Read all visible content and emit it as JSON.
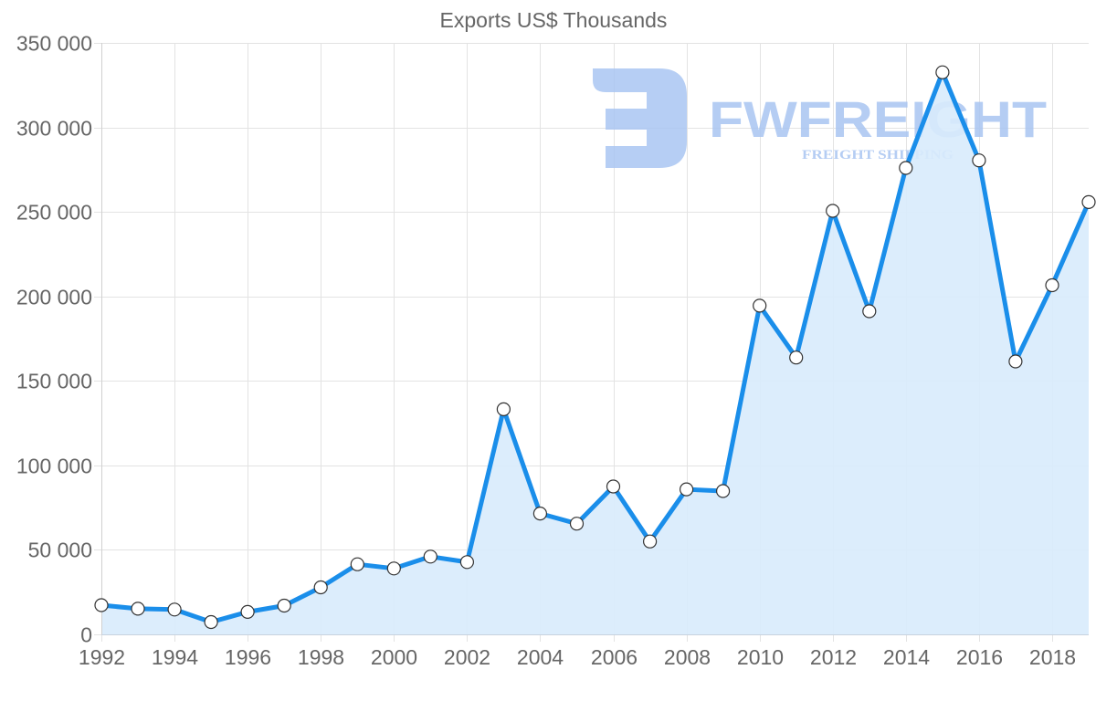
{
  "chart_data": {
    "type": "line",
    "title": "Exports US$ Thousands",
    "xlabel": "",
    "ylabel": "",
    "x": [
      1992,
      1993,
      1994,
      1995,
      1996,
      1997,
      1998,
      1999,
      2000,
      2001,
      2002,
      2003,
      2004,
      2005,
      2006,
      2007,
      2008,
      2009,
      2010,
      2011,
      2012,
      2013,
      2014,
      2015,
      2016,
      2017,
      2018,
      2019
    ],
    "series": [
      {
        "name": "Exports US$ Thousands",
        "values": [
          17300,
          15200,
          14700,
          7300,
          13300,
          17000,
          27800,
          41500,
          39000,
          46000,
          42800,
          133200,
          71500,
          65500,
          87500,
          55000,
          85800,
          84800,
          194500,
          163800,
          250600,
          191200,
          276000,
          332600,
          280500,
          161500,
          206600,
          255800
        ],
        "fill": true
      }
    ],
    "ylim": [
      0,
      350000
    ],
    "yticks": [
      0,
      50000,
      100000,
      150000,
      200000,
      250000,
      300000,
      350000
    ],
    "ytick_labels": [
      "0",
      "50 000",
      "100 000",
      "150 000",
      "200 000",
      "250 000",
      "300 000",
      "350 000"
    ],
    "xticks": [
      1992,
      1994,
      1996,
      1998,
      2000,
      2002,
      2004,
      2006,
      2008,
      2010,
      2012,
      2014,
      2016,
      2018
    ],
    "xtick_labels": [
      "1992",
      "1994",
      "1996",
      "1998",
      "2000",
      "2002",
      "2004",
      "2006",
      "2008",
      "2010",
      "2012",
      "2014",
      "2016",
      "2018"
    ],
    "grid": true,
    "legend": "none",
    "colors": {
      "line": "#1a8eea",
      "fill": "#d8ebfc",
      "marker_fill": "#ffffff",
      "marker_stroke": "#333333",
      "grid": "#e3e3e3",
      "axis_text": "#666666"
    }
  },
  "watermark": {
    "brand": "FWFREIGHT",
    "tagline": "FREIGHT SHIPPING",
    "color": "#a9c5f2"
  }
}
